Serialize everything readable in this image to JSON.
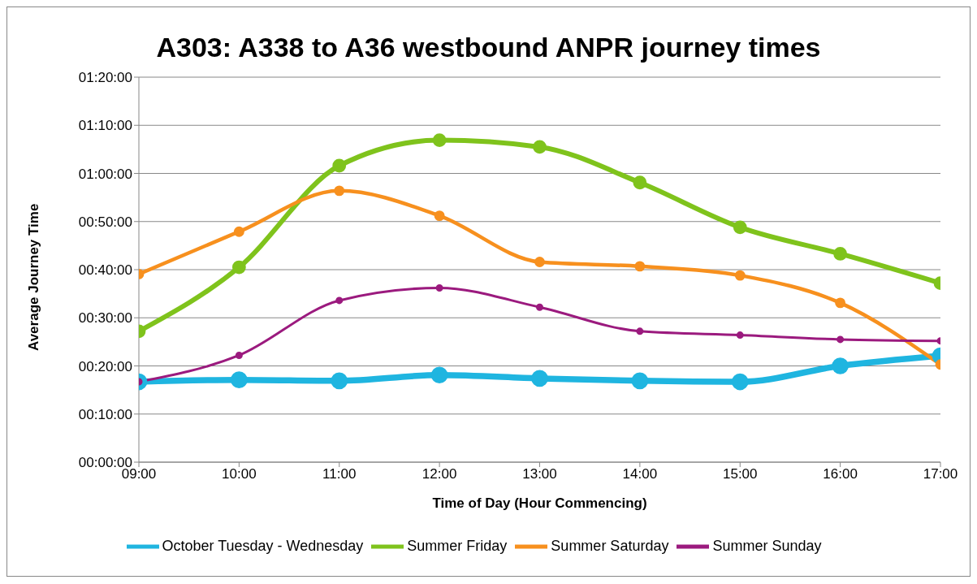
{
  "chart_data": {
    "type": "line",
    "title": "A303: A338 to A36 westbound ANPR journey times",
    "xlabel": "Time of Day (Hour Commencing)",
    "ylabel": "Average Journey Time",
    "x": [
      9,
      10,
      11,
      12,
      13,
      14,
      15,
      16,
      17
    ],
    "series": [
      {
        "name": "October Tuesday - Wednesday",
        "color": "#1fb5e0",
        "values": [
          16.7,
          17.1,
          16.9,
          18.1,
          17.4,
          16.9,
          16.7,
          20.0,
          22.1
        ]
      },
      {
        "name": "Summer Friday",
        "color": "#7fc31c",
        "values": [
          27.2,
          40.5,
          61.6,
          66.9,
          65.5,
          58.1,
          48.8,
          43.3,
          37.2
        ]
      },
      {
        "name": "Summer Saturday",
        "color": "#f7901e",
        "values": [
          39.1,
          47.9,
          56.4,
          51.2,
          41.6,
          40.7,
          38.8,
          33.1,
          20.3
        ]
      },
      {
        "name": "Summer Sunday",
        "color": "#9b1a7e",
        "values": [
          16.7,
          22.2,
          33.6,
          36.2,
          32.2,
          27.2,
          26.4,
          25.5,
          25.2
        ]
      }
    ],
    "xlim": [
      9,
      17
    ],
    "xticks": [
      {
        "value": 9,
        "label": "09:00"
      },
      {
        "value": 10,
        "label": "10:00"
      },
      {
        "value": 11,
        "label": "11:00"
      },
      {
        "value": 12,
        "label": "12:00"
      },
      {
        "value": 13,
        "label": "13:00"
      },
      {
        "value": 14,
        "label": "14:00"
      },
      {
        "value": 15,
        "label": "15:00"
      },
      {
        "value": 16,
        "label": "16:00"
      },
      {
        "value": 17,
        "label": "17:00"
      }
    ],
    "ylim": [
      0,
      80
    ],
    "yticks": [
      {
        "value": 0,
        "label": "00:00:00"
      },
      {
        "value": 10,
        "label": "00:10:00"
      },
      {
        "value": 20,
        "label": "00:20:00"
      },
      {
        "value": 30,
        "label": "00:30:00"
      },
      {
        "value": 40,
        "label": "00:40:00"
      },
      {
        "value": 50,
        "label": "00:50:00"
      },
      {
        "value": 60,
        "label": "01:00:00"
      },
      {
        "value": 70,
        "label": "01:10:00"
      },
      {
        "value": 80,
        "label": "01:20:00"
      }
    ],
    "grid": "y",
    "legend": "bottom",
    "marker": "circle",
    "line_style": "solid"
  }
}
